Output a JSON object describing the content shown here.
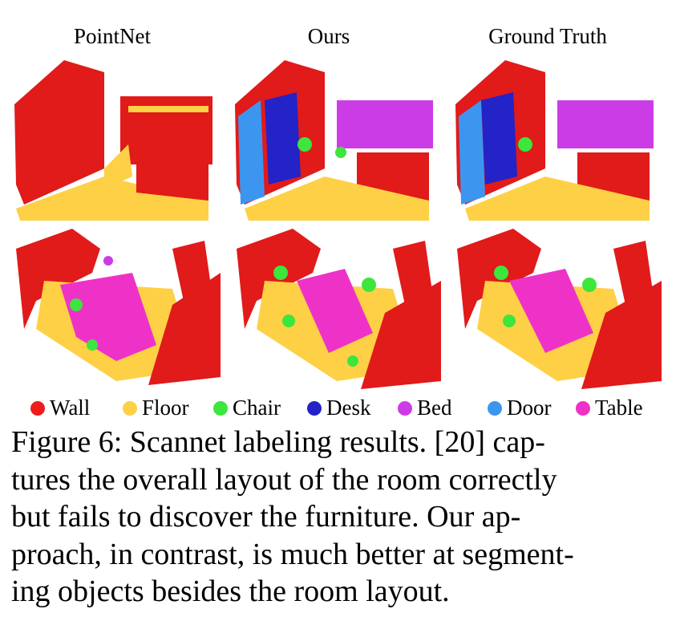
{
  "figure": {
    "columns": [
      "PointNet",
      "Ours",
      "Ground Truth"
    ],
    "legend": [
      {
        "label": "Wall",
        "color": "#ee1c1c"
      },
      {
        "label": "Floor",
        "color": "#fdd046"
      },
      {
        "label": "Chair",
        "color": "#3ce63c"
      },
      {
        "label": "Desk",
        "color": "#2323c8"
      },
      {
        "label": "Bed",
        "color": "#cc3ce6"
      },
      {
        "label": "Door",
        "color": "#3c96f0"
      },
      {
        "label": "Table",
        "color": "#ee32c8"
      }
    ]
  },
  "caption": {
    "lines": [
      "Figure 6: Scannet labeling results. [20] cap-",
      "tures the overall layout of the room correctly",
      "but fails to discover the furniture. Our ap-",
      "proach, in contrast, is much better at segment-",
      "ing objects besides the room layout."
    ]
  }
}
